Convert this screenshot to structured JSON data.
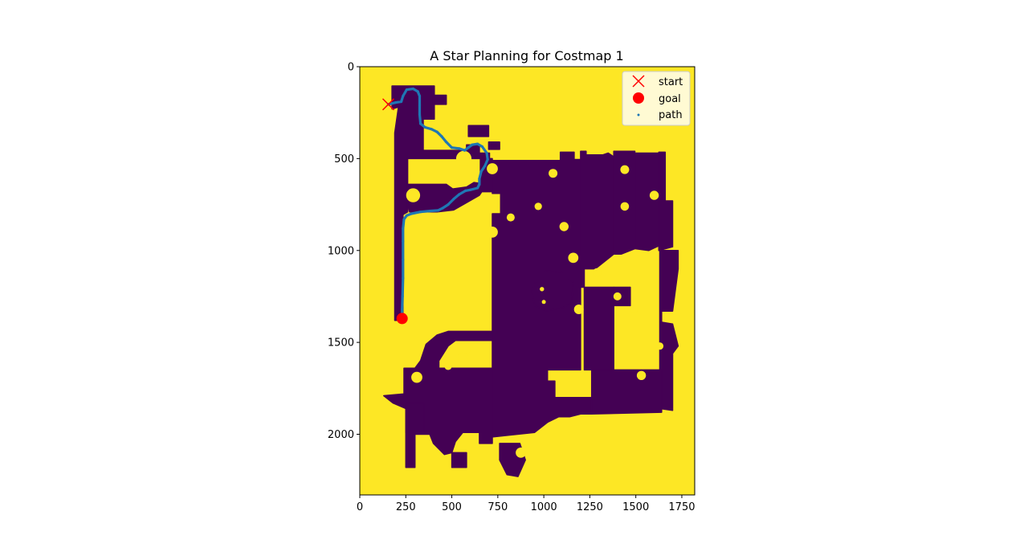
{
  "chart_data": {
    "type": "heatmap",
    "title": "A Star Planning for Costmap 1",
    "xlabel": "",
    "ylabel": "",
    "xlim": [
      0,
      1820
    ],
    "ylim": [
      2330,
      0
    ],
    "x_ticks": [
      0,
      250,
      500,
      750,
      1000,
      1250,
      1500,
      1750
    ],
    "x_tick_labels": [
      "0",
      "250",
      "500",
      "750",
      "1000",
      "1250",
      "1500",
      "1750"
    ],
    "y_ticks": [
      0,
      500,
      1000,
      1500,
      2000
    ],
    "y_tick_labels": [
      "0",
      "500",
      "1000",
      "1500",
      "2000"
    ],
    "colormap": {
      "free": "#fde725",
      "obstacle": "#440154"
    },
    "legend": {
      "position": "upper right",
      "entries": [
        {
          "label": "start",
          "marker": "x",
          "color": "#ff0000"
        },
        {
          "label": "goal",
          "marker": "o",
          "color": "#ff0000"
        },
        {
          "label": "path",
          "marker": ".",
          "color": "#1f77b4"
        }
      ]
    },
    "start": {
      "x": 155,
      "y": 205
    },
    "goal": {
      "x": 230,
      "y": 1370
    },
    "path": [
      [
        155,
        205
      ],
      [
        195,
        195
      ],
      [
        225,
        190
      ],
      [
        235,
        160
      ],
      [
        255,
        125
      ],
      [
        290,
        120
      ],
      [
        315,
        135
      ],
      [
        325,
        160
      ],
      [
        325,
        210
      ],
      [
        325,
        260
      ],
      [
        330,
        310
      ],
      [
        355,
        330
      ],
      [
        390,
        340
      ],
      [
        420,
        355
      ],
      [
        445,
        380
      ],
      [
        470,
        410
      ],
      [
        500,
        440
      ],
      [
        540,
        445
      ],
      [
        570,
        455
      ],
      [
        590,
        440
      ],
      [
        610,
        425
      ],
      [
        640,
        420
      ],
      [
        665,
        435
      ],
      [
        690,
        470
      ],
      [
        695,
        505
      ],
      [
        680,
        540
      ],
      [
        660,
        570
      ],
      [
        650,
        610
      ],
      [
        650,
        640
      ],
      [
        640,
        660
      ],
      [
        600,
        670
      ],
      [
        575,
        675
      ],
      [
        540,
        695
      ],
      [
        510,
        720
      ],
      [
        480,
        750
      ],
      [
        450,
        770
      ],
      [
        425,
        782
      ],
      [
        380,
        785
      ],
      [
        330,
        790
      ],
      [
        280,
        800
      ],
      [
        255,
        810
      ],
      [
        240,
        830
      ],
      [
        235,
        880
      ],
      [
        235,
        950
      ],
      [
        235,
        1050
      ],
      [
        235,
        1150
      ],
      [
        232,
        1250
      ],
      [
        230,
        1320
      ],
      [
        230,
        1370
      ]
    ],
    "obstacle_regions": [
      [
        [
          175,
          105
        ],
        [
          405,
          105
        ],
        [
          405,
          285
        ],
        [
          345,
          285
        ],
        [
          345,
          455
        ],
        [
          580,
          455
        ],
        [
          580,
          425
        ],
        [
          650,
          425
        ],
        [
          650,
          470
        ],
        [
          705,
          470
        ],
        [
          705,
          500
        ],
        [
          260,
          500
        ],
        [
          260,
          790
        ],
        [
          235,
          805
        ],
        [
          235,
          1380
        ],
        [
          190,
          1380
        ],
        [
          190,
          360
        ],
        [
          210,
          220
        ],
        [
          175,
          230
        ]
      ],
      [
        [
          400,
          155
        ],
        [
          470,
          155
        ],
        [
          470,
          205
        ],
        [
          400,
          205
        ]
      ],
      [
        [
          700,
          410
        ],
        [
          760,
          410
        ],
        [
          760,
          450
        ],
        [
          700,
          450
        ]
      ],
      [
        [
          590,
          320
        ],
        [
          700,
          320
        ],
        [
          700,
          380
        ],
        [
          590,
          380
        ]
      ],
      [
        [
          260,
          640
        ],
        [
          470,
          640
        ],
        [
          505,
          665
        ],
        [
          580,
          655
        ],
        [
          620,
          630
        ],
        [
          690,
          640
        ],
        [
          650,
          700
        ],
        [
          510,
          780
        ],
        [
          420,
          790
        ],
        [
          270,
          790
        ],
        [
          260,
          750
        ]
      ],
      [
        [
          655,
          500
        ],
        [
          720,
          500
        ],
        [
          720,
          680
        ],
        [
          655,
          680
        ]
      ],
      [
        [
          720,
          510
        ],
        [
          1090,
          510
        ],
        [
          1090,
          465
        ],
        [
          1165,
          465
        ],
        [
          1165,
          505
        ],
        [
          1200,
          505
        ],
        [
          1200,
          1650
        ],
        [
          1020,
          1650
        ],
        [
          1020,
          1710
        ],
        [
          1060,
          1710
        ],
        [
          1060,
          1800
        ],
        [
          1260,
          1800
        ],
        [
          1260,
          1890
        ],
        [
          1200,
          1890
        ],
        [
          1140,
          1905
        ],
        [
          1080,
          1905
        ],
        [
          1020,
          1935
        ],
        [
          950,
          1990
        ],
        [
          720,
          2015
        ],
        [
          690,
          1880
        ],
        [
          720,
          1690
        ],
        [
          720,
          800
        ],
        [
          765,
          800
        ],
        [
          765,
          690
        ],
        [
          720,
          690
        ]
      ],
      [
        [
          955,
          1170
        ],
        [
          1010,
          1110
        ],
        [
          1095,
          1120
        ],
        [
          1160,
          1175
        ],
        [
          1150,
          1285
        ],
        [
          1105,
          1310
        ],
        [
          1015,
          1330
        ],
        [
          950,
          1300
        ],
        [
          935,
          1220
        ]
      ],
      [
        [
          1200,
          460
        ],
        [
          1230,
          460
        ],
        [
          1230,
          480
        ],
        [
          1320,
          480
        ],
        [
          1350,
          470
        ],
        [
          1380,
          490
        ],
        [
          1380,
          1020
        ],
        [
          1280,
          1100
        ],
        [
          1220,
          1100
        ],
        [
          1220,
          1200
        ],
        [
          1200,
          1200
        ]
      ],
      [
        [
          1220,
          1200
        ],
        [
          1380,
          1200
        ],
        [
          1380,
          1650
        ],
        [
          1220,
          1650
        ]
      ],
      [
        [
          1380,
          460
        ],
        [
          1495,
          460
        ],
        [
          1495,
          990
        ],
        [
          1420,
          1020
        ],
        [
          1380,
          1020
        ]
      ],
      [
        [
          1495,
          470
        ],
        [
          1625,
          470
        ],
        [
          1625,
          975
        ],
        [
          1570,
          1000
        ],
        [
          1495,
          990
        ]
      ],
      [
        [
          1625,
          465
        ],
        [
          1660,
          465
        ],
        [
          1660,
          730
        ],
        [
          1700,
          730
        ],
        [
          1700,
          980
        ],
        [
          1625,
          1000
        ]
      ],
      [
        [
          1630,
          1000
        ],
        [
          1730,
          1000
        ],
        [
          1730,
          1100
        ],
        [
          1700,
          1330
        ],
        [
          1640,
          1330
        ],
        [
          1640,
          1390
        ],
        [
          1700,
          1400
        ],
        [
          1730,
          1520
        ],
        [
          1700,
          1560
        ],
        [
          1700,
          1870
        ],
        [
          1630,
          1860
        ],
        [
          1630,
          1330
        ]
      ],
      [
        [
          1380,
          1200
        ],
        [
          1470,
          1200
        ],
        [
          1470,
          1300
        ],
        [
          1380,
          1300
        ]
      ],
      [
        [
          1260,
          1650
        ],
        [
          1640,
          1650
        ],
        [
          1640,
          1880
        ],
        [
          1260,
          1890
        ]
      ],
      [
        [
          480,
          1440
        ],
        [
          720,
          1440
        ],
        [
          720,
          1490
        ],
        [
          520,
          1490
        ],
        [
          480,
          1520
        ],
        [
          430,
          1600
        ],
        [
          430,
          1640
        ],
        [
          720,
          1640
        ],
        [
          720,
          2050
        ],
        [
          650,
          2050
        ],
        [
          650,
          1990
        ],
        [
          560,
          1990
        ],
        [
          520,
          2040
        ],
        [
          500,
          2100
        ],
        [
          460,
          2110
        ],
        [
          400,
          2050
        ],
        [
          380,
          2000
        ],
        [
          300,
          2000
        ],
        [
          300,
          2180
        ],
        [
          250,
          2180
        ],
        [
          250,
          1860
        ],
        [
          180,
          1830
        ],
        [
          130,
          1790
        ],
        [
          240,
          1780
        ],
        [
          240,
          1640
        ],
        [
          300,
          1640
        ],
        [
          330,
          1600
        ],
        [
          360,
          1510
        ],
        [
          420,
          1460
        ]
      ],
      [
        [
          250,
          1830
        ],
        [
          350,
          1830
        ],
        [
          350,
          1990
        ],
        [
          250,
          1990
        ]
      ],
      [
        [
          500,
          2100
        ],
        [
          580,
          2100
        ],
        [
          580,
          2180
        ],
        [
          500,
          2180
        ]
      ],
      [
        [
          760,
          2050
        ],
        [
          870,
          2050
        ],
        [
          900,
          2140
        ],
        [
          860,
          2230
        ],
        [
          800,
          2220
        ],
        [
          760,
          2140
        ]
      ]
    ],
    "free_blobs": [
      [
        565,
        500,
        42
      ],
      [
        290,
        700,
        38
      ],
      [
        720,
        555,
        30
      ],
      [
        990,
        1210,
        12
      ],
      [
        1000,
        1280,
        11
      ],
      [
        820,
        820,
        22
      ],
      [
        720,
        900,
        30
      ],
      [
        1110,
        870,
        25
      ],
      [
        1190,
        1320,
        26
      ],
      [
        560,
        1580,
        25
      ],
      [
        310,
        1690,
        30
      ],
      [
        480,
        1630,
        20
      ],
      [
        580,
        1540,
        22
      ],
      [
        875,
        2100,
        28
      ],
      [
        1530,
        1680,
        25
      ],
      [
        1490,
        1320,
        20
      ],
      [
        1400,
        1250,
        22
      ],
      [
        1630,
        1520,
        20
      ],
      [
        1600,
        700,
        25
      ],
      [
        1440,
        560,
        24
      ],
      [
        1440,
        760,
        23
      ],
      [
        1050,
        580,
        24
      ],
      [
        970,
        760,
        20
      ],
      [
        1160,
        1040,
        28
      ],
      [
        1290,
        1120,
        24
      ]
    ]
  }
}
